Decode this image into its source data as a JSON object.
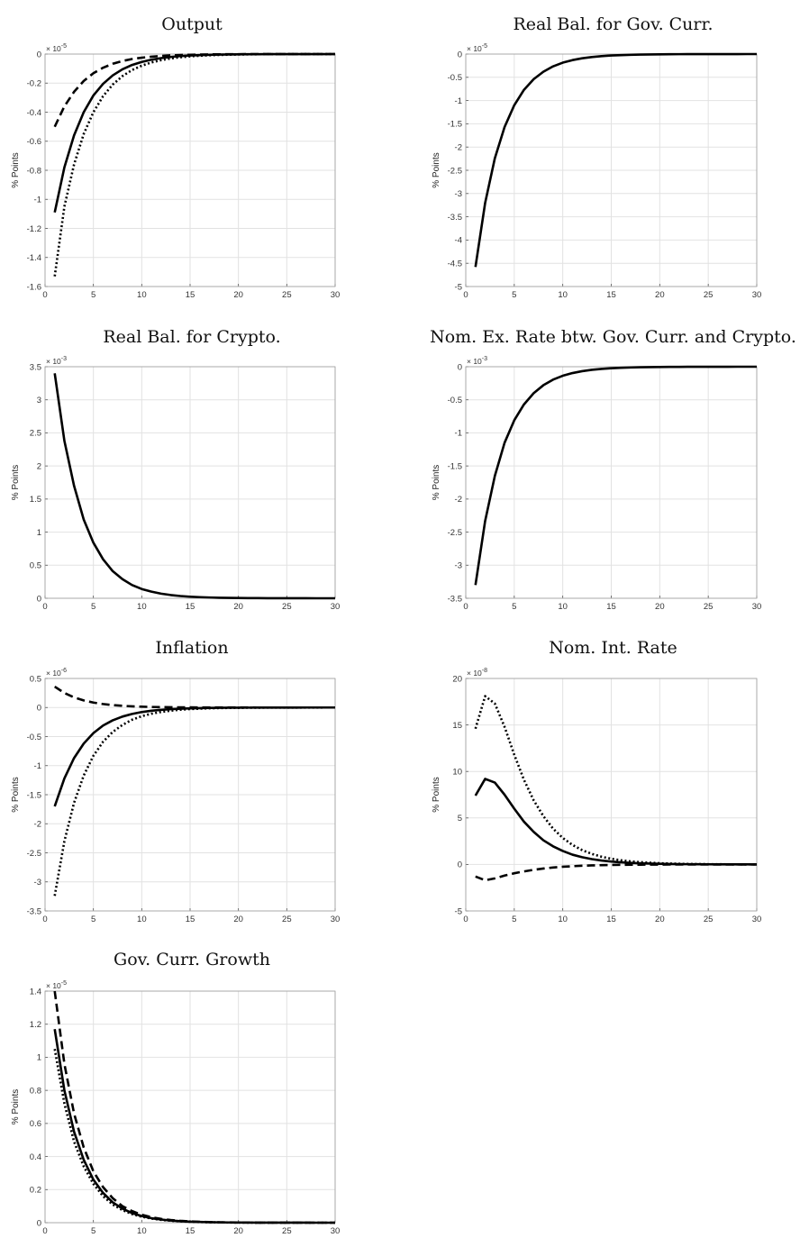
{
  "chart_data": [
    {
      "type": "line",
      "title": "Output",
      "ylabel": "% Points",
      "exponent": "× 10^-5",
      "x": [
        1,
        2,
        3,
        4,
        5,
        6,
        7,
        8,
        9,
        10,
        11,
        12,
        13,
        14,
        15,
        16,
        17,
        18,
        19,
        20,
        21,
        22,
        23,
        24,
        25,
        26,
        27,
        28,
        29,
        30
      ],
      "xlim": [
        0,
        30
      ],
      "xticks": [
        "0",
        "5",
        "10",
        "15",
        "20",
        "25",
        "30"
      ],
      "ylim": [
        -1.6,
        0
      ],
      "yticks": [
        "-1.6",
        "-1.4",
        "-1.2",
        "-1",
        "-0.8",
        "-0.6",
        "-0.4",
        "-0.2",
        "0"
      ],
      "grid": true,
      "series": [
        {
          "style": "solid",
          "values": [
            -1.09,
            -0.78,
            -0.56,
            -0.4,
            -0.285,
            -0.205,
            -0.147,
            -0.105,
            -0.075,
            -0.054,
            -0.039,
            -0.028,
            -0.02,
            -0.014,
            -0.01,
            -0.0072,
            -0.0052,
            -0.0037,
            -0.0027,
            -0.0019,
            -0.0014,
            -0.001,
            -0.0007,
            -0.0005,
            -0.0004,
            -0.0003,
            -0.0002,
            -0.0001,
            -0.0001,
            0
          ]
        },
        {
          "style": "dashed",
          "values": [
            -0.5,
            -0.36,
            -0.26,
            -0.185,
            -0.132,
            -0.094,
            -0.067,
            -0.048,
            -0.034,
            -0.025,
            -0.018,
            -0.013,
            -0.009,
            -0.0065,
            -0.0046,
            -0.0033,
            -0.0024,
            -0.0017,
            -0.0012,
            -0.0009,
            -0.0006,
            -0.0005,
            -0.0003,
            -0.0002,
            -0.0002,
            -0.0001,
            -0.0001,
            0,
            0,
            0
          ]
        },
        {
          "style": "dotted",
          "values": [
            -1.53,
            -1.05,
            -0.76,
            -0.55,
            -0.4,
            -0.29,
            -0.21,
            -0.152,
            -0.11,
            -0.08,
            -0.058,
            -0.042,
            -0.03,
            -0.022,
            -0.016,
            -0.0115,
            -0.0083,
            -0.006,
            -0.0043,
            -0.0031,
            -0.0023,
            -0.0016,
            -0.0012,
            -0.0008,
            -0.0006,
            -0.0004,
            -0.0003,
            -0.0002,
            -0.0002,
            -0.0001
          ]
        }
      ]
    },
    {
      "type": "line",
      "title": "Real Bal. for Gov. Curr.",
      "ylabel": "% Points",
      "exponent": "× 10^-5",
      "x": [
        1,
        2,
        3,
        4,
        5,
        6,
        7,
        8,
        9,
        10,
        11,
        12,
        13,
        14,
        15,
        16,
        17,
        18,
        19,
        20,
        21,
        22,
        23,
        24,
        25,
        26,
        27,
        28,
        29,
        30
      ],
      "xlim": [
        0,
        30
      ],
      "xticks": [
        "0",
        "5",
        "10",
        "15",
        "20",
        "25",
        "30"
      ],
      "ylim": [
        -5,
        0
      ],
      "yticks": [
        "-5",
        "-4.5",
        "-4",
        "-3.5",
        "-3",
        "-2.5",
        "-2",
        "-1.5",
        "-1",
        "-0.5",
        "0"
      ],
      "grid": true,
      "series": [
        {
          "style": "solid",
          "values": [
            -4.58,
            -3.2,
            -2.24,
            -1.57,
            -1.1,
            -0.77,
            -0.54,
            -0.38,
            -0.265,
            -0.185,
            -0.13,
            -0.091,
            -0.064,
            -0.045,
            -0.031,
            -0.022,
            -0.0154,
            -0.0108,
            -0.0075,
            -0.0053,
            -0.0037,
            -0.0026,
            -0.0018,
            -0.0013,
            -0.0009,
            -0.0006,
            -0.0004,
            -0.0003,
            -0.0002,
            -0.0001
          ]
        }
      ]
    },
    {
      "type": "line",
      "title": "Real Bal. for Crypto.",
      "ylabel": "% Points",
      "exponent": "× 10^-3",
      "x": [
        1,
        2,
        3,
        4,
        5,
        6,
        7,
        8,
        9,
        10,
        11,
        12,
        13,
        14,
        15,
        16,
        17,
        18,
        19,
        20,
        21,
        22,
        23,
        24,
        25,
        26,
        27,
        28,
        29,
        30
      ],
      "xlim": [
        0,
        30
      ],
      "xticks": [
        "0",
        "5",
        "10",
        "15",
        "20",
        "25",
        "30"
      ],
      "ylim": [
        0,
        3.5
      ],
      "yticks": [
        "0",
        "0.5",
        "1",
        "1.5",
        "2",
        "2.5",
        "3",
        "3.5"
      ],
      "grid": true,
      "series": [
        {
          "style": "solid",
          "values": [
            3.4,
            2.38,
            1.7,
            1.19,
            0.84,
            0.59,
            0.41,
            0.29,
            0.2,
            0.14,
            0.1,
            0.07,
            0.049,
            0.034,
            0.024,
            0.017,
            0.012,
            0.0083,
            0.0058,
            0.0041,
            0.0029,
            0.002,
            0.0014,
            0.001,
            0.0007,
            0.0005,
            0.0003,
            0.0002,
            0.0002,
            0.0001
          ]
        }
      ]
    },
    {
      "type": "line",
      "title": "Nom. Ex. Rate btw. Gov. Curr. and Crypto.",
      "ylabel": "% Points",
      "exponent": "× 10^-3",
      "x": [
        1,
        2,
        3,
        4,
        5,
        6,
        7,
        8,
        9,
        10,
        11,
        12,
        13,
        14,
        15,
        16,
        17,
        18,
        19,
        20,
        21,
        22,
        23,
        24,
        25,
        26,
        27,
        28,
        29,
        30
      ],
      "xlim": [
        0,
        30
      ],
      "xticks": [
        "0",
        "5",
        "10",
        "15",
        "20",
        "25",
        "30"
      ],
      "ylim": [
        -3.5,
        0
      ],
      "yticks": [
        "-3.5",
        "-3",
        "-2.5",
        "-2",
        "-1.5",
        "-1",
        "-0.5",
        "0"
      ],
      "grid": true,
      "series": [
        {
          "style": "solid",
          "values": [
            -3.3,
            -2.33,
            -1.65,
            -1.15,
            -0.81,
            -0.57,
            -0.4,
            -0.28,
            -0.195,
            -0.137,
            -0.096,
            -0.067,
            -0.047,
            -0.033,
            -0.023,
            -0.016,
            -0.0113,
            -0.0079,
            -0.0055,
            -0.0039,
            -0.0027,
            -0.0019,
            -0.0013,
            -0.0009,
            -0.0007,
            -0.0005,
            -0.0003,
            -0.0002,
            -0.0002,
            -0.0001
          ]
        }
      ]
    },
    {
      "type": "line",
      "title": "Inflation",
      "ylabel": "% Points",
      "exponent": "× 10^-6",
      "x": [
        1,
        2,
        3,
        4,
        5,
        6,
        7,
        8,
        9,
        10,
        11,
        12,
        13,
        14,
        15,
        16,
        17,
        18,
        19,
        20,
        21,
        22,
        23,
        24,
        25,
        26,
        27,
        28,
        29,
        30
      ],
      "xlim": [
        0,
        30
      ],
      "xticks": [
        "0",
        "5",
        "10",
        "15",
        "20",
        "25",
        "30"
      ],
      "ylim": [
        -3.5,
        0.5
      ],
      "yticks": [
        "-3.5",
        "-3",
        "-2.5",
        "-2",
        "-1.5",
        "-1",
        "-0.5",
        "0",
        "0.5"
      ],
      "grid": true,
      "series": [
        {
          "style": "solid",
          "values": [
            -1.7,
            -1.22,
            -0.87,
            -0.62,
            -0.44,
            -0.31,
            -0.22,
            -0.156,
            -0.11,
            -0.078,
            -0.055,
            -0.039,
            -0.028,
            -0.02,
            -0.014,
            -0.01,
            -0.007,
            -0.005,
            -0.0035,
            -0.0025,
            -0.0018,
            -0.0013,
            -0.0009,
            -0.0006,
            -0.0004,
            -0.0003,
            -0.0002,
            -0.0002,
            -0.0001,
            -0.0001
          ]
        },
        {
          "style": "dashed",
          "values": [
            0.36,
            0.25,
            0.175,
            0.122,
            0.085,
            0.06,
            0.042,
            0.029,
            0.02,
            0.014,
            0.01,
            0.007,
            0.005,
            0.0035,
            0.0024,
            0.0017,
            0.0012,
            0.0008,
            0.0006,
            0.0004,
            0.0003,
            0.0002,
            0.0001,
            0.0001,
            0.0001,
            0,
            0,
            0,
            0,
            0
          ]
        },
        {
          "style": "dotted",
          "values": [
            -3.24,
            -2.3,
            -1.64,
            -1.17,
            -0.83,
            -0.59,
            -0.42,
            -0.3,
            -0.21,
            -0.15,
            -0.107,
            -0.076,
            -0.054,
            -0.038,
            -0.027,
            -0.019,
            -0.0137,
            -0.0097,
            -0.0069,
            -0.0049,
            -0.0035,
            -0.0025,
            -0.0018,
            -0.0013,
            -0.0009,
            -0.0006,
            -0.0004,
            -0.0003,
            -0.0002,
            -0.0002
          ]
        }
      ]
    },
    {
      "type": "line",
      "title": "Nom. Int. Rate",
      "ylabel": "% Points",
      "exponent": "× 10^-8",
      "x": [
        1,
        2,
        3,
        4,
        5,
        6,
        7,
        8,
        9,
        10,
        11,
        12,
        13,
        14,
        15,
        16,
        17,
        18,
        19,
        20,
        21,
        22,
        23,
        24,
        25,
        26,
        27,
        28,
        29,
        30
      ],
      "xlim": [
        0,
        30
      ],
      "xticks": [
        "0",
        "5",
        "10",
        "15",
        "20",
        "25",
        "30"
      ],
      "ylim": [
        -5,
        20
      ],
      "yticks": [
        "-5",
        "0",
        "5",
        "10",
        "15",
        "20"
      ],
      "grid": true,
      "series": [
        {
          "style": "solid",
          "values": [
            7.4,
            9.2,
            8.8,
            7.5,
            6.0,
            4.6,
            3.5,
            2.6,
            1.95,
            1.45,
            1.05,
            0.78,
            0.57,
            0.42,
            0.31,
            0.23,
            0.17,
            0.12,
            0.09,
            0.065,
            0.048,
            0.035,
            0.026,
            0.019,
            0.014,
            0.01,
            0.007,
            0.005,
            0.004,
            0.003
          ]
        },
        {
          "style": "dashed",
          "values": [
            -1.3,
            -1.7,
            -1.5,
            -1.2,
            -0.95,
            -0.75,
            -0.58,
            -0.44,
            -0.33,
            -0.25,
            -0.19,
            -0.14,
            -0.105,
            -0.078,
            -0.058,
            -0.043,
            -0.032,
            -0.024,
            -0.018,
            -0.013,
            -0.01,
            -0.007,
            -0.005,
            -0.004,
            -0.003,
            -0.002,
            -0.0015,
            -0.001,
            -0.0008,
            -0.0006
          ]
        },
        {
          "style": "dotted",
          "values": [
            14.6,
            18.1,
            17.3,
            14.8,
            11.8,
            9.1,
            6.9,
            5.2,
            3.85,
            2.85,
            2.1,
            1.54,
            1.13,
            0.83,
            0.61,
            0.45,
            0.33,
            0.24,
            0.18,
            0.13,
            0.095,
            0.07,
            0.051,
            0.037,
            0.027,
            0.02,
            0.015,
            0.011,
            0.008,
            0.006
          ]
        }
      ]
    },
    {
      "type": "line",
      "title": "Gov. Curr. Growth",
      "ylabel": "% Points",
      "exponent": "× 10^-5",
      "x": [
        1,
        2,
        3,
        4,
        5,
        6,
        7,
        8,
        9,
        10,
        11,
        12,
        13,
        14,
        15,
        16,
        17,
        18,
        19,
        20,
        21,
        22,
        23,
        24,
        25,
        26,
        27,
        28,
        29,
        30
      ],
      "xlim": [
        0,
        30
      ],
      "xticks": [
        "0",
        "5",
        "10",
        "15",
        "20",
        "25",
        "30"
      ],
      "ylim": [
        0,
        1.4
      ],
      "yticks": [
        "0",
        "0.2",
        "0.4",
        "0.6",
        "0.8",
        "1",
        "1.2",
        "1.4"
      ],
      "grid": true,
      "series": [
        {
          "style": "solid",
          "values": [
            1.17,
            0.8,
            0.55,
            0.38,
            0.26,
            0.18,
            0.123,
            0.085,
            0.058,
            0.04,
            0.027,
            0.019,
            0.013,
            0.009,
            0.006,
            0.0042,
            0.0029,
            0.002,
            0.0014,
            0.001,
            0.0007,
            0.0005,
            0.0003,
            0.0002,
            0.0002,
            0.0001,
            0.0001,
            0,
            0,
            0
          ]
        },
        {
          "style": "dashed",
          "values": [
            1.4,
            0.96,
            0.66,
            0.455,
            0.31,
            0.215,
            0.148,
            0.1,
            0.07,
            0.048,
            0.033,
            0.023,
            0.016,
            0.011,
            0.0075,
            0.0052,
            0.0036,
            0.0025,
            0.0017,
            0.0012,
            0.0008,
            0.0005,
            0.0004,
            0.0003,
            0.0002,
            0.0001,
            0.0001,
            0,
            0,
            0
          ]
        },
        {
          "style": "dotted",
          "values": [
            1.05,
            0.72,
            0.49,
            0.34,
            0.235,
            0.16,
            0.11,
            0.076,
            0.052,
            0.036,
            0.025,
            0.017,
            0.012,
            0.008,
            0.0055,
            0.0038,
            0.0026,
            0.0018,
            0.0012,
            0.0008,
            0.0006,
            0.0004,
            0.0003,
            0.0002,
            0.0001,
            0.0001,
            0,
            0,
            0,
            0
          ]
        }
      ]
    }
  ]
}
